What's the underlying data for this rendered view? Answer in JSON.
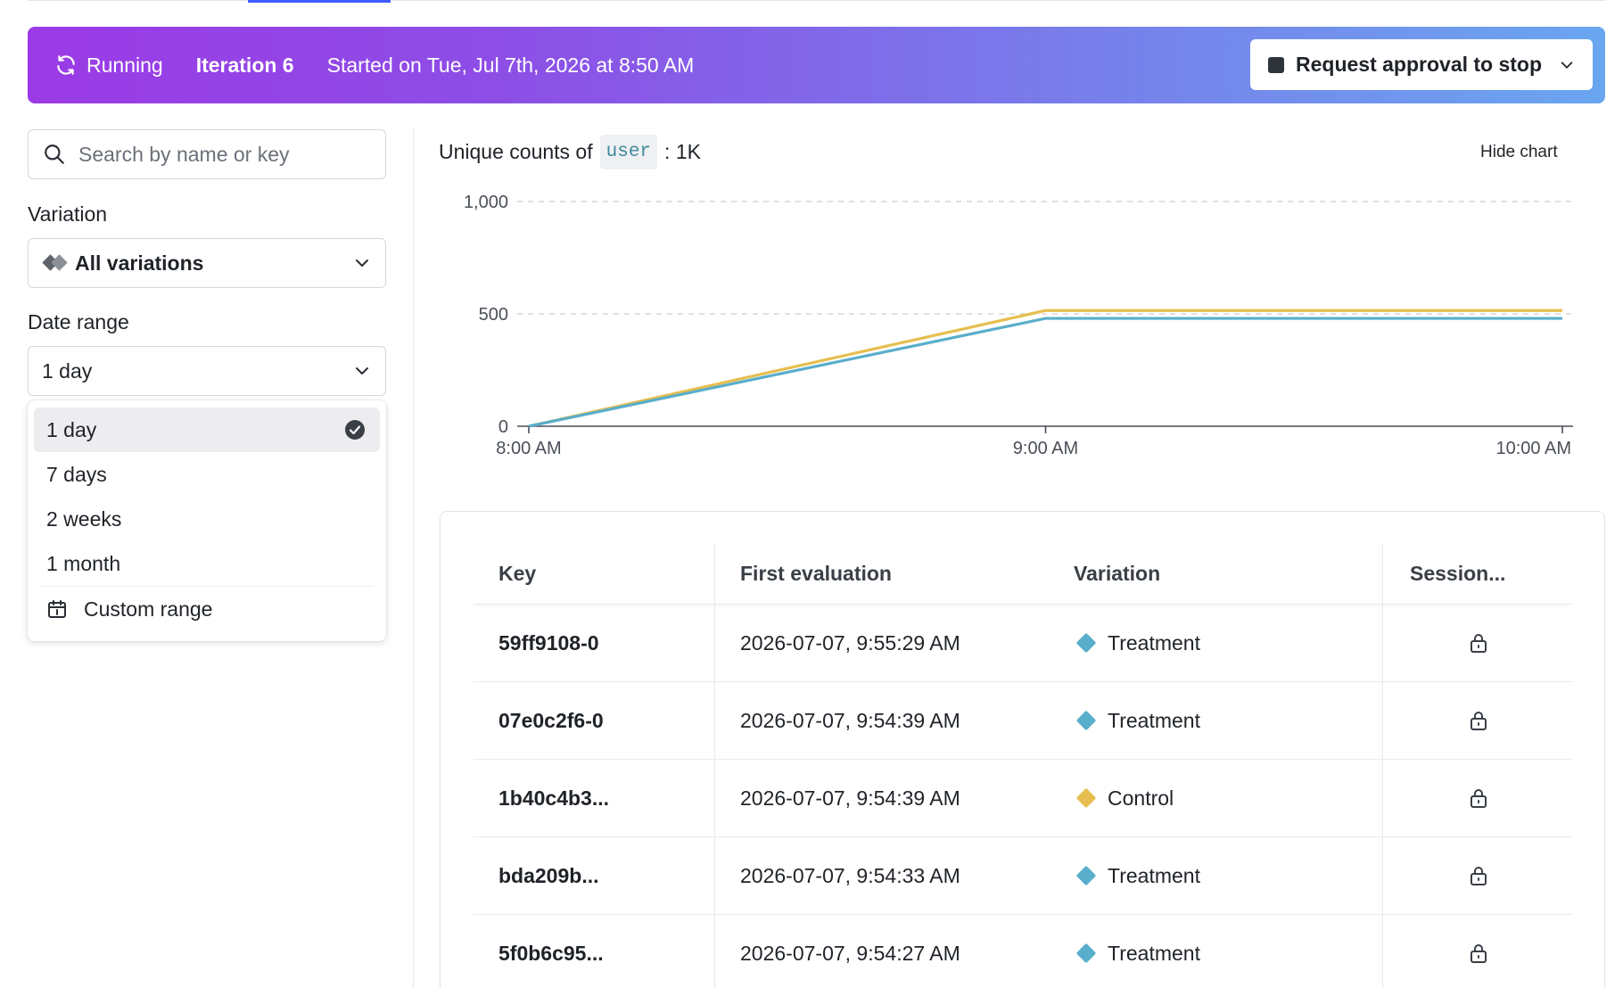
{
  "banner": {
    "status": "Running",
    "iteration": "Iteration 6",
    "started": "Started on Tue, Jul 7th, 2026 at 8:50 AM",
    "stop_button": "Request approval to stop"
  },
  "filters": {
    "search_placeholder": "Search by name or key",
    "variation_label": "Variation",
    "variation_value": "All variations",
    "date_range_label": "Date range",
    "date_range_value": "1 day",
    "date_options": [
      "1 day",
      "7 days",
      "2 weeks",
      "1 month"
    ],
    "selected_option": "1 day",
    "custom_range": "Custom range"
  },
  "chart": {
    "title_prefix": "Unique counts of",
    "context_kind": "user",
    "title_suffix": ": 1K",
    "hide_button": "Hide chart"
  },
  "colors": {
    "control": "#E6BE4F",
    "treatment": "#59AECB",
    "banner_start": "#9B3AE6",
    "banner_end": "#6AA6F0"
  },
  "chart_data": {
    "type": "line",
    "x": [
      "8:00 AM",
      "9:00 AM",
      "10:00 AM"
    ],
    "series": [
      {
        "color": "#E6BE4F",
        "values": [
          0,
          515,
          515
        ]
      },
      {
        "color": "#59AECB",
        "values": [
          0,
          480,
          480
        ]
      }
    ],
    "yticks": [
      "0",
      "500",
      "1,000"
    ],
    "ylim": [
      0,
      1000
    ],
    "grid": true
  },
  "table": {
    "headers": [
      "Key",
      "First evaluation",
      "Variation",
      "Session..."
    ],
    "rows": [
      {
        "key": "59ff9108-0",
        "first": "2026-07-07, 9:55:29 AM",
        "variation": "Treatment",
        "color": "#59AECB"
      },
      {
        "key": "07e0c2f6-0",
        "first": "2026-07-07, 9:54:39 AM",
        "variation": "Treatment",
        "color": "#59AECB"
      },
      {
        "key": "1b40c4b3...",
        "first": "2026-07-07, 9:54:39 AM",
        "variation": "Control",
        "color": "#E6BE4F"
      },
      {
        "key": "bda209b...",
        "first": "2026-07-07, 9:54:33 AM",
        "variation": "Treatment",
        "color": "#59AECB"
      },
      {
        "key": "5f0b6c95...",
        "first": "2026-07-07, 9:54:27 AM",
        "variation": "Treatment",
        "color": "#59AECB"
      }
    ]
  }
}
